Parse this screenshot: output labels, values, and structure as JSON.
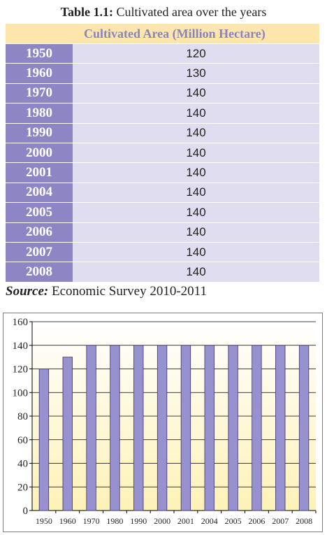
{
  "table": {
    "caption_lead": "Table 1.1:",
    "caption_rest": " Cultivated area over the years",
    "header_year": "",
    "header_area": "Cultivated Area (Million Hectare)",
    "rows": [
      {
        "year": "1950",
        "value": "120"
      },
      {
        "year": "1960",
        "value": "130"
      },
      {
        "year": "1970",
        "value": "140"
      },
      {
        "year": "1980",
        "value": "140"
      },
      {
        "year": "1990",
        "value": "140"
      },
      {
        "year": "2000",
        "value": "140"
      },
      {
        "year": "2001",
        "value": "140"
      },
      {
        "year": "2004",
        "value": "140"
      },
      {
        "year": "2005",
        "value": "140"
      },
      {
        "year": "2006",
        "value": "140"
      },
      {
        "year": "2007",
        "value": "140"
      },
      {
        "year": "2008",
        "value": "140"
      }
    ]
  },
  "source": {
    "label": "Source:",
    "text": " Economic Survey 2010-2011"
  },
  "chart_data": {
    "type": "bar",
    "categories": [
      "1950",
      "1960",
      "1970",
      "1980",
      "1990",
      "2000",
      "2001",
      "2004",
      "2005",
      "2006",
      "2007",
      "2008"
    ],
    "values": [
      120,
      130,
      140,
      140,
      140,
      140,
      140,
      140,
      140,
      140,
      140,
      140
    ],
    "title": "",
    "xlabel": "",
    "ylabel": "",
    "ylim": [
      0,
      160
    ],
    "yticks": [
      "0",
      "20",
      "40",
      "60",
      "80",
      "100",
      "120",
      "140",
      "160"
    ],
    "grid": true,
    "legend": "none",
    "bar_color": "#9891cf",
    "background_gradient": [
      "#ffffff",
      "#fdf2b6"
    ]
  }
}
